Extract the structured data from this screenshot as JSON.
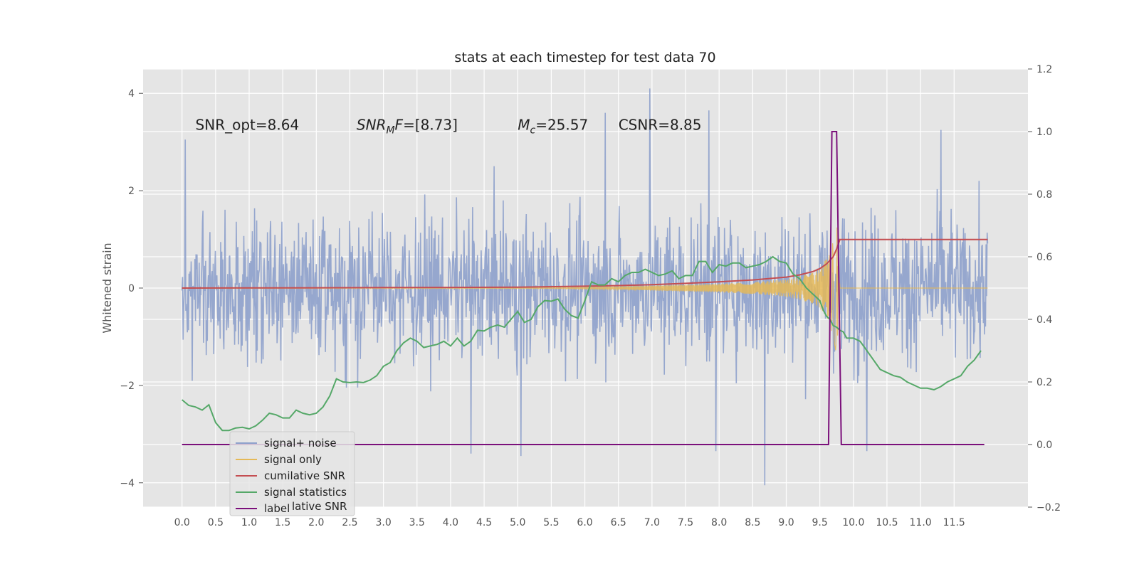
{
  "chart_data": {
    "type": "line",
    "title": "stats at each timestep for test data 70",
    "xlabel": "",
    "ylabel": "Whitened strain",
    "xlim": [
      -0.58,
      12.6
    ],
    "ylim": [
      -4.5,
      4.5
    ],
    "y2lim": [
      -0.2,
      1.2
    ],
    "x_ticks": [
      0.0,
      0.5,
      1.0,
      1.5,
      2.0,
      2.5,
      3.0,
      3.5,
      4.0,
      4.5,
      5.0,
      5.5,
      6.0,
      6.5,
      7.0,
      7.5,
      8.0,
      8.5,
      9.0,
      9.5,
      10.0,
      10.5,
      11.0,
      11.5
    ],
    "x_tick_labels": [
      "0.0",
      "0.5",
      "1.0",
      "1.5",
      "2.0",
      "2.5",
      "3.0",
      "3.5",
      "4.0",
      "4.5",
      "5.0",
      "5.5",
      "6.0",
      "6.5",
      "7.0",
      "7.5",
      "8.0",
      "8.5",
      "9.0",
      "9.5",
      "10.0",
      "10.5",
      "11.0",
      "11.5"
    ],
    "y_ticks": [
      -4,
      -2,
      0,
      2,
      4
    ],
    "y_tick_labels": [
      "−4",
      "−2",
      "0",
      "2",
      "4"
    ],
    "y2_ticks": [
      -0.2,
      0.0,
      0.2,
      0.4,
      0.6,
      0.8,
      1.0,
      1.2
    ],
    "y2_tick_labels": [
      "−0.2",
      "0.0",
      "0.2",
      "0.4",
      "0.6",
      "0.8",
      "1.0",
      "1.2"
    ],
    "grid": true,
    "legend_position": "lower-left",
    "annotations": [
      {
        "text": "SNR_opt=8.64",
        "x": 0.2,
        "y": 3.35
      },
      {
        "text": "SNR_MF=[8.73]",
        "x": 2.6,
        "y": 3.35
      },
      {
        "text": "M_c=25.57",
        "x": 5.0,
        "y": 3.35
      },
      {
        "text": "CSNR=8.85",
        "x": 6.5,
        "y": 3.35
      }
    ],
    "series": [
      {
        "name": "signal+ noise",
        "color": "#8da0cb",
        "axis": "left",
        "style": "noise band",
        "x_range": [
          0.0,
          12.0
        ],
        "envelope_typical": [
          -2.0,
          2.0
        ],
        "extremes": [
          -4.05,
          4.1
        ],
        "spikes": [
          [
            0.05,
            3.05
          ],
          [
            6.97,
            4.1
          ],
          [
            6.3,
            3.6
          ],
          [
            7.85,
            3.65
          ],
          [
            8.68,
            -4.05
          ],
          [
            4.3,
            -3.4
          ],
          [
            5.05,
            -3.45
          ],
          [
            7.95,
            -3.35
          ],
          [
            10.2,
            -3.35
          ],
          [
            11.3,
            3.25
          ]
        ]
      },
      {
        "name": "signal only",
        "color": "#e5b957",
        "axis": "left",
        "style": "chirp",
        "x": [
          5.5,
          6.0,
          6.5,
          7.0,
          7.5,
          8.0,
          8.5,
          9.0,
          9.2,
          9.4,
          9.5,
          9.6,
          9.7,
          9.75,
          9.8
        ],
        "amplitude": [
          0.01,
          0.02,
          0.03,
          0.05,
          0.07,
          0.09,
          0.12,
          0.18,
          0.24,
          0.32,
          0.42,
          0.6,
          1.0,
          1.4,
          0.0
        ]
      },
      {
        "name": "cumilative SNR",
        "color": "#c44e52",
        "axis": "right",
        "x": [
          0.0,
          1.0,
          2.0,
          3.0,
          4.0,
          5.0,
          6.0,
          6.5,
          7.0,
          7.5,
          8.0,
          8.5,
          9.0,
          9.2,
          9.4,
          9.5,
          9.6,
          9.7,
          9.75,
          9.8,
          10.0,
          11.0,
          12.0
        ],
        "values": [
          0.5,
          0.5005,
          0.501,
          0.5015,
          0.502,
          0.503,
          0.506,
          0.508,
          0.511,
          0.515,
          0.52,
          0.526,
          0.535,
          0.542,
          0.553,
          0.562,
          0.577,
          0.6,
          0.625,
          0.655,
          0.655,
          0.655,
          0.655
        ]
      },
      {
        "name": "signal statistics",
        "color": "#55a868",
        "axis": "right",
        "x": [
          0.0,
          0.1,
          0.2,
          0.3,
          0.4,
          0.5,
          0.6,
          0.7,
          0.8,
          0.9,
          1.0,
          1.1,
          1.2,
          1.3,
          1.4,
          1.5,
          1.6,
          1.7,
          1.8,
          1.9,
          2.0,
          2.1,
          2.2,
          2.3,
          2.4,
          2.5,
          2.6,
          2.7,
          2.8,
          2.9,
          3.0,
          3.1,
          3.2,
          3.3,
          3.4,
          3.5,
          3.6,
          3.7,
          3.8,
          3.9,
          4.0,
          4.1,
          4.2,
          4.3,
          4.4,
          4.5,
          4.6,
          4.7,
          4.8,
          4.9,
          5.0,
          5.1,
          5.2,
          5.3,
          5.4,
          5.5,
          5.6,
          5.7,
          5.8,
          5.9,
          6.0,
          6.1,
          6.2,
          6.3,
          6.4,
          6.5,
          6.6,
          6.7,
          6.8,
          6.9,
          7.0,
          7.1,
          7.2,
          7.3,
          7.4,
          7.5,
          7.6,
          7.7,
          7.8,
          7.9,
          8.0,
          8.1,
          8.2,
          8.3,
          8.4,
          8.5,
          8.6,
          8.7,
          8.8,
          8.9,
          9.0,
          9.1,
          9.2,
          9.3,
          9.4,
          9.5,
          9.55,
          9.6,
          9.65,
          9.7,
          9.75,
          9.8,
          9.85,
          9.9,
          10.0,
          10.1,
          10.2,
          10.3,
          10.4,
          10.5,
          10.6,
          10.7,
          10.8,
          10.9,
          11.0,
          11.1,
          11.2,
          11.3,
          11.4,
          11.5,
          11.6,
          11.7,
          11.8,
          11.9
        ],
        "values": [
          0.143,
          0.125,
          0.12,
          0.11,
          0.127,
          0.07,
          0.045,
          0.045,
          0.053,
          0.055,
          0.05,
          0.06,
          0.078,
          0.1,
          0.095,
          0.085,
          0.085,
          0.11,
          0.1,
          0.095,
          0.1,
          0.12,
          0.155,
          0.21,
          0.2,
          0.198,
          0.2,
          0.198,
          0.206,
          0.22,
          0.25,
          0.262,
          0.3,
          0.325,
          0.34,
          0.33,
          0.31,
          0.315,
          0.32,
          0.33,
          0.315,
          0.34,
          0.315,
          0.33,
          0.365,
          0.363,
          0.375,
          0.382,
          0.375,
          0.4,
          0.425,
          0.39,
          0.4,
          0.44,
          0.46,
          0.458,
          0.465,
          0.432,
          0.412,
          0.404,
          0.46,
          0.52,
          0.51,
          0.51,
          0.53,
          0.52,
          0.54,
          0.55,
          0.55,
          0.56,
          0.55,
          0.54,
          0.545,
          0.555,
          0.53,
          0.54,
          0.54,
          0.585,
          0.585,
          0.55,
          0.575,
          0.57,
          0.58,
          0.58,
          0.565,
          0.57,
          0.575,
          0.585,
          0.6,
          0.585,
          0.58,
          0.545,
          0.53,
          0.5,
          0.48,
          0.46,
          0.43,
          0.41,
          0.4,
          0.38,
          0.375,
          0.365,
          0.36,
          0.34,
          0.34,
          0.33,
          0.3,
          0.27,
          0.24,
          0.23,
          0.22,
          0.215,
          0.2,
          0.19,
          0.18,
          0.18,
          0.175,
          0.185,
          0.2,
          0.21,
          0.22,
          0.25,
          0.27,
          0.3
        ]
      },
      {
        "name": "label",
        "color": "#7b107b",
        "axis": "right",
        "x": [
          0.0,
          9.63,
          9.68,
          9.75,
          9.82,
          11.95
        ],
        "values": [
          0.0,
          0.0,
          1.0,
          1.0,
          0.0,
          0.0
        ]
      }
    ],
    "legend_ghost_text": "lative SNR"
  }
}
